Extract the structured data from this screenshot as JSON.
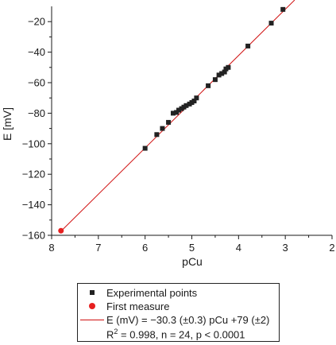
{
  "chart_data": {
    "type": "scatter",
    "xlabel": "pCu",
    "ylabel": "E [mV]",
    "xlim": [
      8,
      2
    ],
    "ylim": [
      -160,
      -10
    ],
    "x_reversed": true,
    "xticks": [
      8,
      7,
      6,
      5,
      4,
      3,
      2
    ],
    "yticks": [
      -160,
      -140,
      -120,
      -100,
      -80,
      -60,
      -40,
      -20
    ],
    "grid": false,
    "legend_position": "below",
    "series": [
      {
        "name": "Experimental points",
        "marker": "square",
        "color": "#222222",
        "points": [
          [
            6.0,
            -103
          ],
          [
            5.75,
            -94
          ],
          [
            5.63,
            -90
          ],
          [
            5.5,
            -86
          ],
          [
            5.4,
            -80
          ],
          [
            5.33,
            -79.5
          ],
          [
            5.28,
            -78
          ],
          [
            5.22,
            -77
          ],
          [
            5.17,
            -76
          ],
          [
            5.12,
            -75
          ],
          [
            5.05,
            -74
          ],
          [
            5.0,
            -73
          ],
          [
            4.95,
            -72
          ],
          [
            4.9,
            -70
          ],
          [
            4.65,
            -62
          ],
          [
            4.5,
            -58
          ],
          [
            4.42,
            -55
          ],
          [
            4.36,
            -54
          ],
          [
            4.3,
            -53
          ],
          [
            4.27,
            -51
          ],
          [
            4.22,
            -50
          ],
          [
            3.8,
            -36
          ],
          [
            3.3,
            -21
          ],
          [
            3.05,
            -12
          ]
        ]
      },
      {
        "name": "First measure",
        "marker": "circle",
        "color": "#e62020",
        "points": [
          [
            7.8,
            -157
          ]
        ]
      },
      {
        "name": "E (mV) = −30.3 (±0.3) pCu +79 (±2)",
        "type": "line",
        "color": "#d01010",
        "slope": -30.3,
        "intercept": 79,
        "x_range": [
          7.8,
          2.8
        ]
      }
    ],
    "fit_stats": "R2 = 0.998, n = 24, p < 0.0001"
  },
  "legend": {
    "items": [
      {
        "label": "Experimental points"
      },
      {
        "label": "First measure"
      },
      {
        "label": "E (mV) = −30.3 (±0.3) pCu +79 (±2)"
      }
    ],
    "r2_prefix": "R",
    "r2_sup": "2",
    "r2_rest": " = 0.998, n = 24, p < 0.0001"
  }
}
